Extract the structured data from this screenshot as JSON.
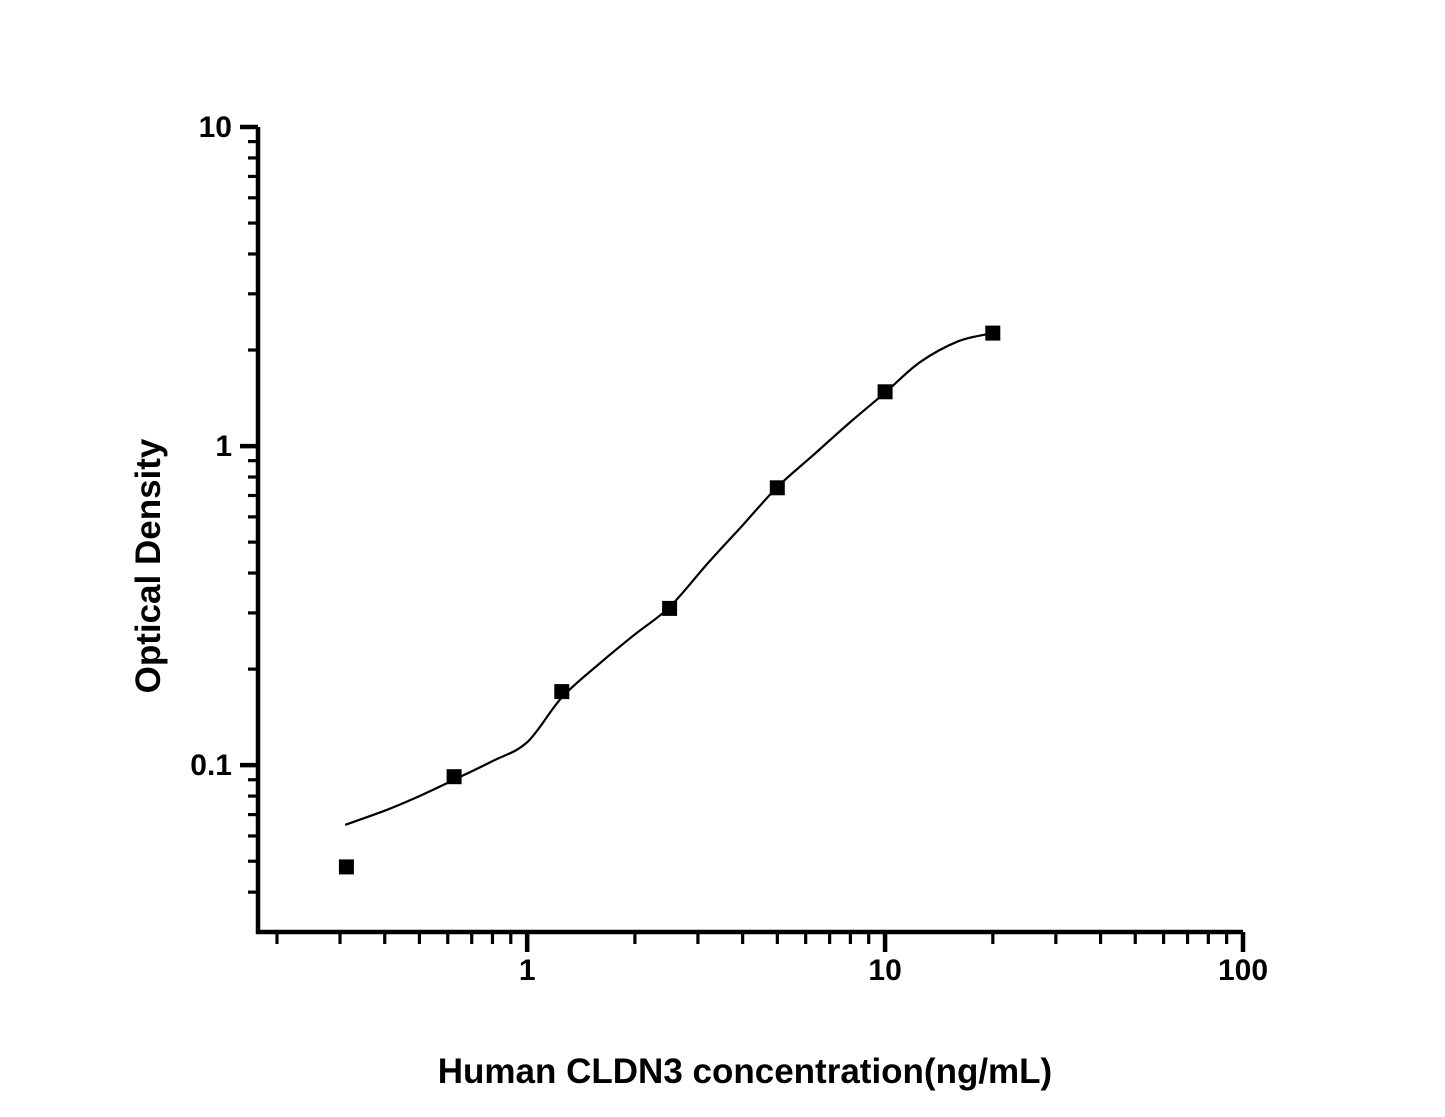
{
  "chart_data": {
    "type": "scatter",
    "title": "",
    "xlabel": "Human CLDN3 concentration(ng/mL)",
    "ylabel": "Optical Density",
    "x_scale": "log",
    "y_scale": "log",
    "xlim": [
      0.177,
      100
    ],
    "ylim": [
      0.03,
      10
    ],
    "grid": false,
    "legend_position": "none",
    "x_ticks": [
      {
        "value": 1,
        "label": "1"
      },
      {
        "value": 10,
        "label": "10"
      },
      {
        "value": 100,
        "label": "100"
      }
    ],
    "y_ticks": [
      {
        "value": 0.1,
        "label": "0.1"
      },
      {
        "value": 1,
        "label": "1"
      },
      {
        "value": 10,
        "label": "10"
      }
    ],
    "minor_ticks": true,
    "series": [
      {
        "name": "standard-points",
        "marker": "square",
        "marker_size": 15,
        "color": "#000000",
        "points": [
          {
            "x": 0.3125,
            "y": 0.048
          },
          {
            "x": 0.625,
            "y": 0.092
          },
          {
            "x": 1.25,
            "y": 0.17
          },
          {
            "x": 2.5,
            "y": 0.31
          },
          {
            "x": 5,
            "y": 0.74
          },
          {
            "x": 10,
            "y": 1.48
          },
          {
            "x": 20,
            "y": 2.26
          }
        ]
      }
    ],
    "fit_curve": {
      "name": "4pl-fit-curve",
      "color": "#000000",
      "stroke_width": 2.2,
      "samples": [
        [
          0.31,
          0.065
        ],
        [
          0.4,
          0.072
        ],
        [
          0.5,
          0.08
        ],
        [
          0.625,
          0.09
        ],
        [
          0.8,
          0.103
        ],
        [
          1.0,
          0.118
        ],
        [
          1.25,
          0.163
        ],
        [
          1.6,
          0.209
        ],
        [
          2.0,
          0.257
        ],
        [
          2.5,
          0.313
        ],
        [
          3.2,
          0.43
        ],
        [
          4.0,
          0.565
        ],
        [
          5.0,
          0.744
        ],
        [
          6.3,
          0.937
        ],
        [
          8.0,
          1.19
        ],
        [
          10,
          1.47
        ],
        [
          12.5,
          1.83
        ],
        [
          16,
          2.13
        ],
        [
          20,
          2.26
        ]
      ]
    },
    "colors": {
      "foreground": "#000000",
      "background": "#ffffff"
    }
  }
}
